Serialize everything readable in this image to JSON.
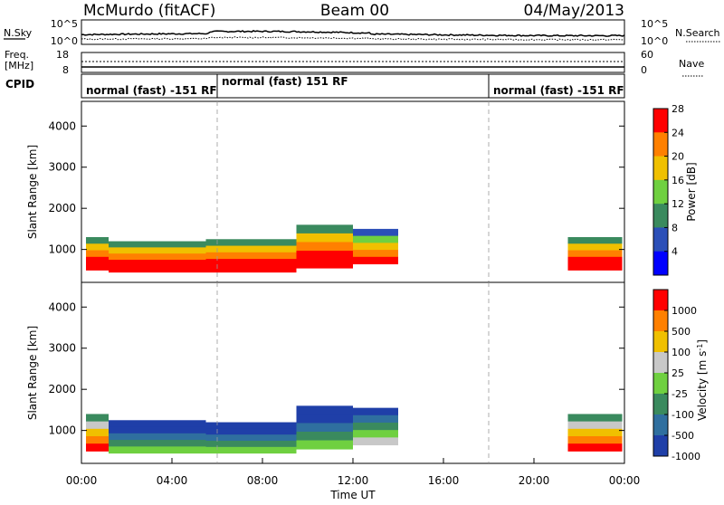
{
  "header": {
    "station": "McMurdo (fitACF)",
    "beam": "Beam 00",
    "date": "04/May/2013"
  },
  "noise_panel": {
    "left_label": "N.Sky",
    "right_label": "N.Search",
    "left_ticks": [
      "10^5",
      "10^0"
    ],
    "right_ticks": [
      "10^5",
      "10^0"
    ]
  },
  "freq_panel": {
    "left_label_1": "Freq.",
    "left_label_2": "[MHz]",
    "left_ticks": [
      "18",
      "8"
    ],
    "right_label": "Nave",
    "right_ticks": [
      "60",
      "0"
    ]
  },
  "cpid_panel": {
    "label": "CPID",
    "segments": [
      {
        "text": "normal (fast) -151 RF",
        "start": 0,
        "end": 6
      },
      {
        "text": "normal (fast) 151 RF",
        "start": 6,
        "end": 18
      },
      {
        "text": "normal (fast) -151 RF",
        "start": 18,
        "end": 24
      }
    ]
  },
  "x_axis": {
    "label": "Time UT",
    "ticks": [
      "00:00",
      "04:00",
      "08:00",
      "12:00",
      "16:00",
      "20:00",
      "00:00"
    ]
  },
  "chart_data": [
    {
      "type": "heatmap",
      "quantity": "Power",
      "colorbar_label": "Power [dB]",
      "colorbar_ticks": [
        "4",
        "8",
        "12",
        "16",
        "20",
        "24",
        "28"
      ],
      "colorbar_colors": [
        "#0000ff",
        "#2b4fb8",
        "#3a8a5e",
        "#6fd040",
        "#f0c000",
        "#ff8000",
        "#ff0000"
      ],
      "ylabel": "Slant Range [km]",
      "y_ticks": [
        "1000",
        "2000",
        "3000",
        "4000"
      ],
      "ylim": [
        200,
        4600
      ],
      "xlim_hours": [
        0,
        24
      ],
      "regions": [
        {
          "t0": 0.2,
          "t1": 1.2,
          "r0": 500,
          "r1": 1300,
          "level": 6
        },
        {
          "t0": 1.2,
          "t1": 5.5,
          "r0": 450,
          "r1": 1200,
          "level": 6
        },
        {
          "t0": 5.5,
          "t1": 9.5,
          "r0": 450,
          "r1": 1250,
          "level": 6
        },
        {
          "t0": 9.5,
          "t1": 12.0,
          "r0": 550,
          "r1": 1600,
          "level": 6
        },
        {
          "t0": 12.0,
          "t1": 14.0,
          "r0": 650,
          "r1": 1500,
          "level": 5
        },
        {
          "t0": 21.5,
          "t1": 23.9,
          "r0": 500,
          "r1": 1300,
          "level": 6
        }
      ]
    },
    {
      "type": "heatmap",
      "quantity": "Velocity",
      "colorbar_label": "Velocity [m s^-1]",
      "colorbar_ticks": [
        "1000",
        "500",
        "100",
        "25",
        "-25",
        "-100",
        "-500",
        "-1000"
      ],
      "colorbar_colors": [
        "#1f3fa8",
        "#2f6f9f",
        "#3a8a5e",
        "#6fd040",
        "#c8c8c8",
        "#f0c000",
        "#ff8000",
        "#ff0000"
      ],
      "ylabel": "Slant Range [km]",
      "y_ticks": [
        "1000",
        "2000",
        "3000",
        "4000"
      ],
      "ylim": [
        200,
        4600
      ],
      "xlim_hours": [
        0,
        24
      ],
      "regions": [
        {
          "t0": 0.2,
          "t1": 1.2,
          "r0": 500,
          "r1": 1400,
          "level": 6
        },
        {
          "t0": 1.2,
          "t1": 5.5,
          "r0": 450,
          "r1": 1250,
          "level": 2
        },
        {
          "t0": 5.5,
          "t1": 9.5,
          "r0": 450,
          "r1": 1200,
          "level": 2
        },
        {
          "t0": 9.5,
          "t1": 12.0,
          "r0": 550,
          "r1": 1600,
          "level": 2
        },
        {
          "t0": 12.0,
          "t1": 14.0,
          "r0": 650,
          "r1": 1550,
          "level": 3
        },
        {
          "t0": 21.5,
          "t1": 23.9,
          "r0": 500,
          "r1": 1400,
          "level": 6
        }
      ]
    }
  ]
}
